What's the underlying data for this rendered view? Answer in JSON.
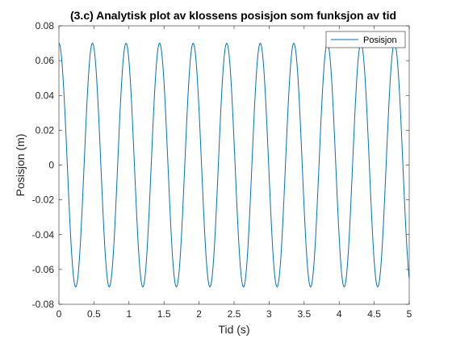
{
  "chart_data": {
    "type": "line",
    "title": "(3.c) Analytisk plot av klossens posisjon som funksjon av tid",
    "xlabel": "Tid (s)",
    "ylabel": "Posisjon (m)",
    "xlim": [
      0,
      5
    ],
    "ylim": [
      -0.08,
      0.08
    ],
    "x_ticks": [
      0,
      0.5,
      1,
      1.5,
      2,
      2.5,
      3,
      3.5,
      4,
      4.5,
      5
    ],
    "x_tick_labels": [
      "0",
      "0.5",
      "1",
      "1.5",
      "2",
      "2.5",
      "3",
      "3.5",
      "4",
      "4.5",
      "5"
    ],
    "y_ticks": [
      -0.08,
      -0.06,
      -0.04,
      -0.02,
      0,
      0.02,
      0.04,
      0.06,
      0.08
    ],
    "y_tick_labels": [
      "-0.08",
      "-0.06",
      "-0.04",
      "-0.02",
      "0",
      "0.02",
      "0.04",
      "0.06",
      "0.08"
    ],
    "grid": false,
    "legend_position": "top-right",
    "series": [
      {
        "name": "Posisjon",
        "color": "#0072BD",
        "function": "cos",
        "amplitude": 0.07,
        "period": 0.479,
        "phase": 0,
        "x_start": 0,
        "x_end": 5
      }
    ]
  }
}
